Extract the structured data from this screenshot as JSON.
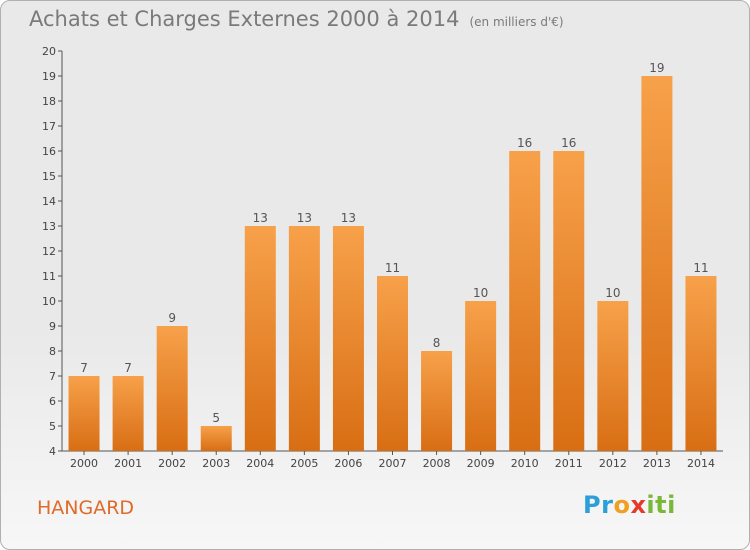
{
  "title": "Achats et Charges Externes 2000 à 2014",
  "unit": "(en milliers d'€)",
  "commune": "HANGARD",
  "logo": {
    "letters": [
      "P",
      "r",
      "o",
      "x",
      "i",
      "t",
      "i"
    ],
    "colors": [
      "#2b9fd8",
      "#2b9fd8",
      "#f0a020",
      "#e53a2a",
      "#7ab83a",
      "#7ab83a",
      "#7ab83a"
    ]
  },
  "chart_data": {
    "type": "bar",
    "categories": [
      "2000",
      "2001",
      "2002",
      "2003",
      "2004",
      "2005",
      "2006",
      "2007",
      "2008",
      "2009",
      "2010",
      "2011",
      "2012",
      "2013",
      "2014"
    ],
    "values": [
      7,
      7,
      9,
      5,
      13,
      13,
      13,
      11,
      8,
      10,
      16,
      16,
      10,
      19,
      11
    ],
    "ylim": [
      4,
      20
    ],
    "yticks": [
      4,
      5,
      6,
      7,
      8,
      9,
      10,
      11,
      12,
      13,
      14,
      15,
      16,
      17,
      18,
      19,
      20
    ],
    "grid": false,
    "bar_color_top": "#f7a14a",
    "bar_color_bottom": "#d86e14"
  }
}
